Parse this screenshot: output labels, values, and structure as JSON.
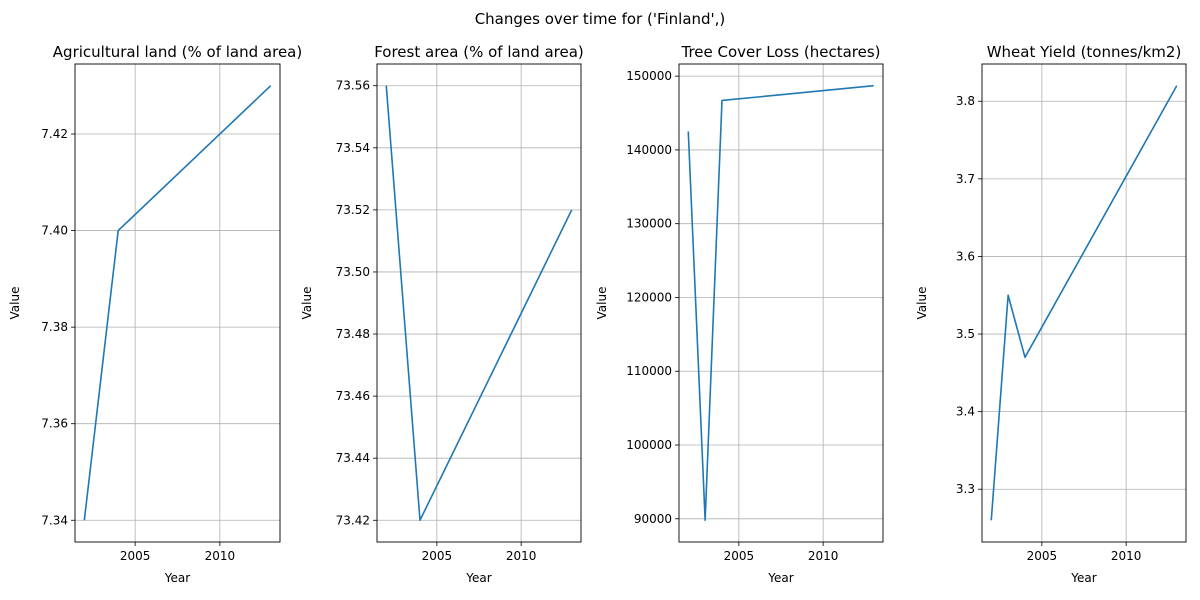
{
  "figure": {
    "suptitle": "Changes over time for ('Finland',)",
    "line_color": "#1f77b4",
    "grid_color": "#b0b0b0",
    "grid": true
  },
  "chart_data": [
    {
      "type": "line",
      "title": "Agricultural land (% of land area)",
      "xlabel": "Year",
      "ylabel": "Value",
      "x": [
        2002,
        2004,
        2013
      ],
      "y": [
        7.34,
        7.4,
        7.43
      ],
      "xlim": [
        2001.45,
        2013.55
      ],
      "ylim": [
        7.3355,
        7.4345
      ],
      "xticks": [
        2005,
        2010
      ],
      "xtick_labels": [
        "2005",
        "2010"
      ],
      "yticks": [
        7.34,
        7.36,
        7.38,
        7.4,
        7.42
      ],
      "ytick_labels": [
        "7.34",
        "7.36",
        "7.38",
        "7.40",
        "7.42"
      ]
    },
    {
      "type": "line",
      "title": "Forest area (% of land area)",
      "xlabel": "Year",
      "ylabel": "Value",
      "x": [
        2002,
        2004,
        2013
      ],
      "y": [
        73.56,
        73.42,
        73.52
      ],
      "xlim": [
        2001.45,
        2013.55
      ],
      "ylim": [
        73.413,
        73.567
      ],
      "xticks": [
        2005,
        2010
      ],
      "xtick_labels": [
        "2005",
        "2010"
      ],
      "yticks": [
        73.42,
        73.44,
        73.46,
        73.48,
        73.5,
        73.52,
        73.54,
        73.56
      ],
      "ytick_labels": [
        "73.42",
        "73.44",
        "73.46",
        "73.48",
        "73.50",
        "73.52",
        "73.54",
        "73.56"
      ]
    },
    {
      "type": "line",
      "title": "Tree Cover Loss (hectares)",
      "xlabel": "Year",
      "ylabel": "Value",
      "x": [
        2002,
        2003,
        2004,
        2013
      ],
      "y": [
        142500,
        89800,
        146700,
        148700
      ],
      "xlim": [
        2001.45,
        2013.55
      ],
      "ylim": [
        86855,
        151645
      ],
      "xticks": [
        2005,
        2010
      ],
      "xtick_labels": [
        "2005",
        "2010"
      ],
      "yticks": [
        90000,
        100000,
        110000,
        120000,
        130000,
        140000,
        150000
      ],
      "ytick_labels": [
        "90000",
        "100000",
        "110000",
        "120000",
        "130000",
        "140000",
        "150000"
      ]
    },
    {
      "type": "line",
      "title": "Wheat Yield (tonnes/km2)",
      "xlabel": "Year",
      "ylabel": "Value",
      "x": [
        2002,
        2003,
        2004,
        2013
      ],
      "y": [
        3.26,
        3.55,
        3.47,
        3.82
      ],
      "xlim": [
        2001.45,
        2013.55
      ],
      "ylim": [
        3.232,
        3.848
      ],
      "xticks": [
        2005,
        2010
      ],
      "xtick_labels": [
        "2005",
        "2010"
      ],
      "yticks": [
        3.3,
        3.4,
        3.5,
        3.6,
        3.7,
        3.8
      ],
      "ytick_labels": [
        "3.3",
        "3.4",
        "3.5",
        "3.6",
        "3.7",
        "3.8"
      ]
    }
  ]
}
